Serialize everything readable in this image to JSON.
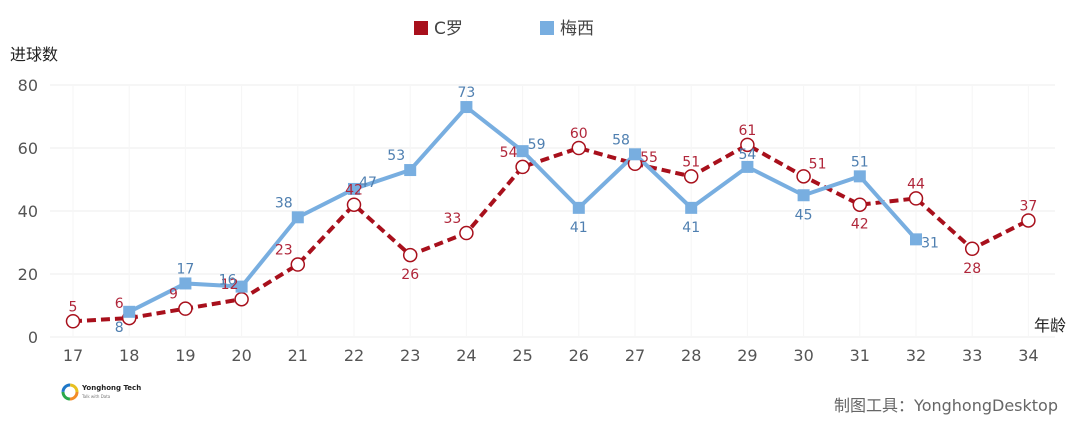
{
  "chart_data": {
    "type": "line",
    "title": "",
    "xlabel": "年龄",
    "ylabel": "进球数",
    "ylim": [
      0,
      80
    ],
    "yticks": [
      0,
      20,
      40,
      60,
      80
    ],
    "grid": true,
    "legend_placement": "top-center",
    "series": [
      {
        "name": "C罗",
        "color": "#a8101c",
        "x": [
          17,
          18,
          19,
          20,
          21,
          22,
          23,
          24,
          25,
          26,
          27,
          28,
          29,
          30,
          31,
          32,
          33,
          34
        ],
        "values": [
          5,
          6,
          9,
          12,
          23,
          42,
          26,
          33,
          54,
          60,
          55,
          51,
          61,
          51,
          42,
          44,
          28,
          37
        ],
        "style": "dashed",
        "marker": "hollow-circle"
      },
      {
        "name": "梅西",
        "color": "#78aee0",
        "x": [
          18,
          19,
          20,
          21,
          22,
          23,
          24,
          25,
          26,
          27,
          28,
          29,
          30,
          31,
          32
        ],
        "values": [
          8,
          17,
          16,
          38,
          47,
          53,
          73,
          59,
          41,
          58,
          41,
          54,
          45,
          51,
          31
        ],
        "style": "solid",
        "marker": "square"
      }
    ]
  },
  "footer": {
    "credit": "制图工具：YonghongDesktop",
    "logo_name": "Yonghong Tech",
    "logo_tagline": "Talk with Data"
  }
}
